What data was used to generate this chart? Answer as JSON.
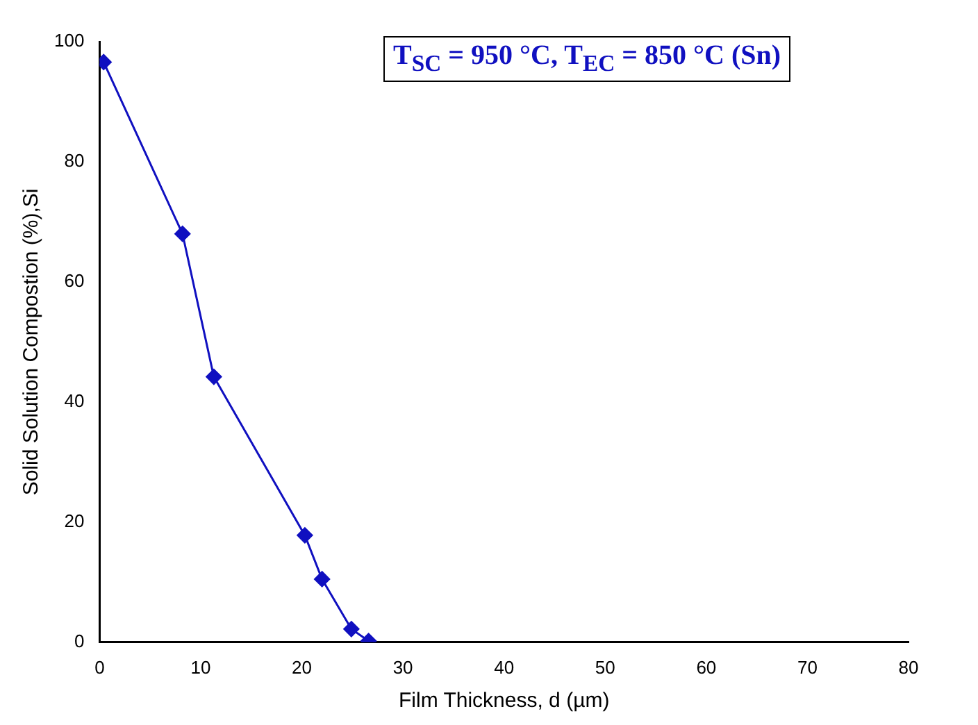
{
  "chart_data": {
    "type": "line",
    "xlabel": "Film Thickness, d (µm)",
    "ylabel": "Solid Solution Compostion (%),Si",
    "annotations": [
      "T$_{SC}$ = 950 °C, T$_{EC}$ = 850 °C (Sn)"
    ],
    "x": [
      0.4,
      8.2,
      11.3,
      20.3,
      22,
      24.9,
      26.6
    ],
    "series": [
      {
        "color": "#1010c0",
        "values": [
          96.6,
          68,
          44.2,
          17.8,
          10.5,
          2.2,
          0.2
        ]
      }
    ],
    "xlim": [
      0,
      80
    ],
    "xticks": [
      0,
      10,
      20,
      30,
      40,
      50,
      60,
      70,
      80
    ],
    "ylim": [
      0,
      100
    ],
    "yticks": [
      0,
      20,
      40,
      60,
      80,
      100
    ],
    "grid": false,
    "legend": false,
    "marker": "diamond",
    "line_style": "solid"
  }
}
